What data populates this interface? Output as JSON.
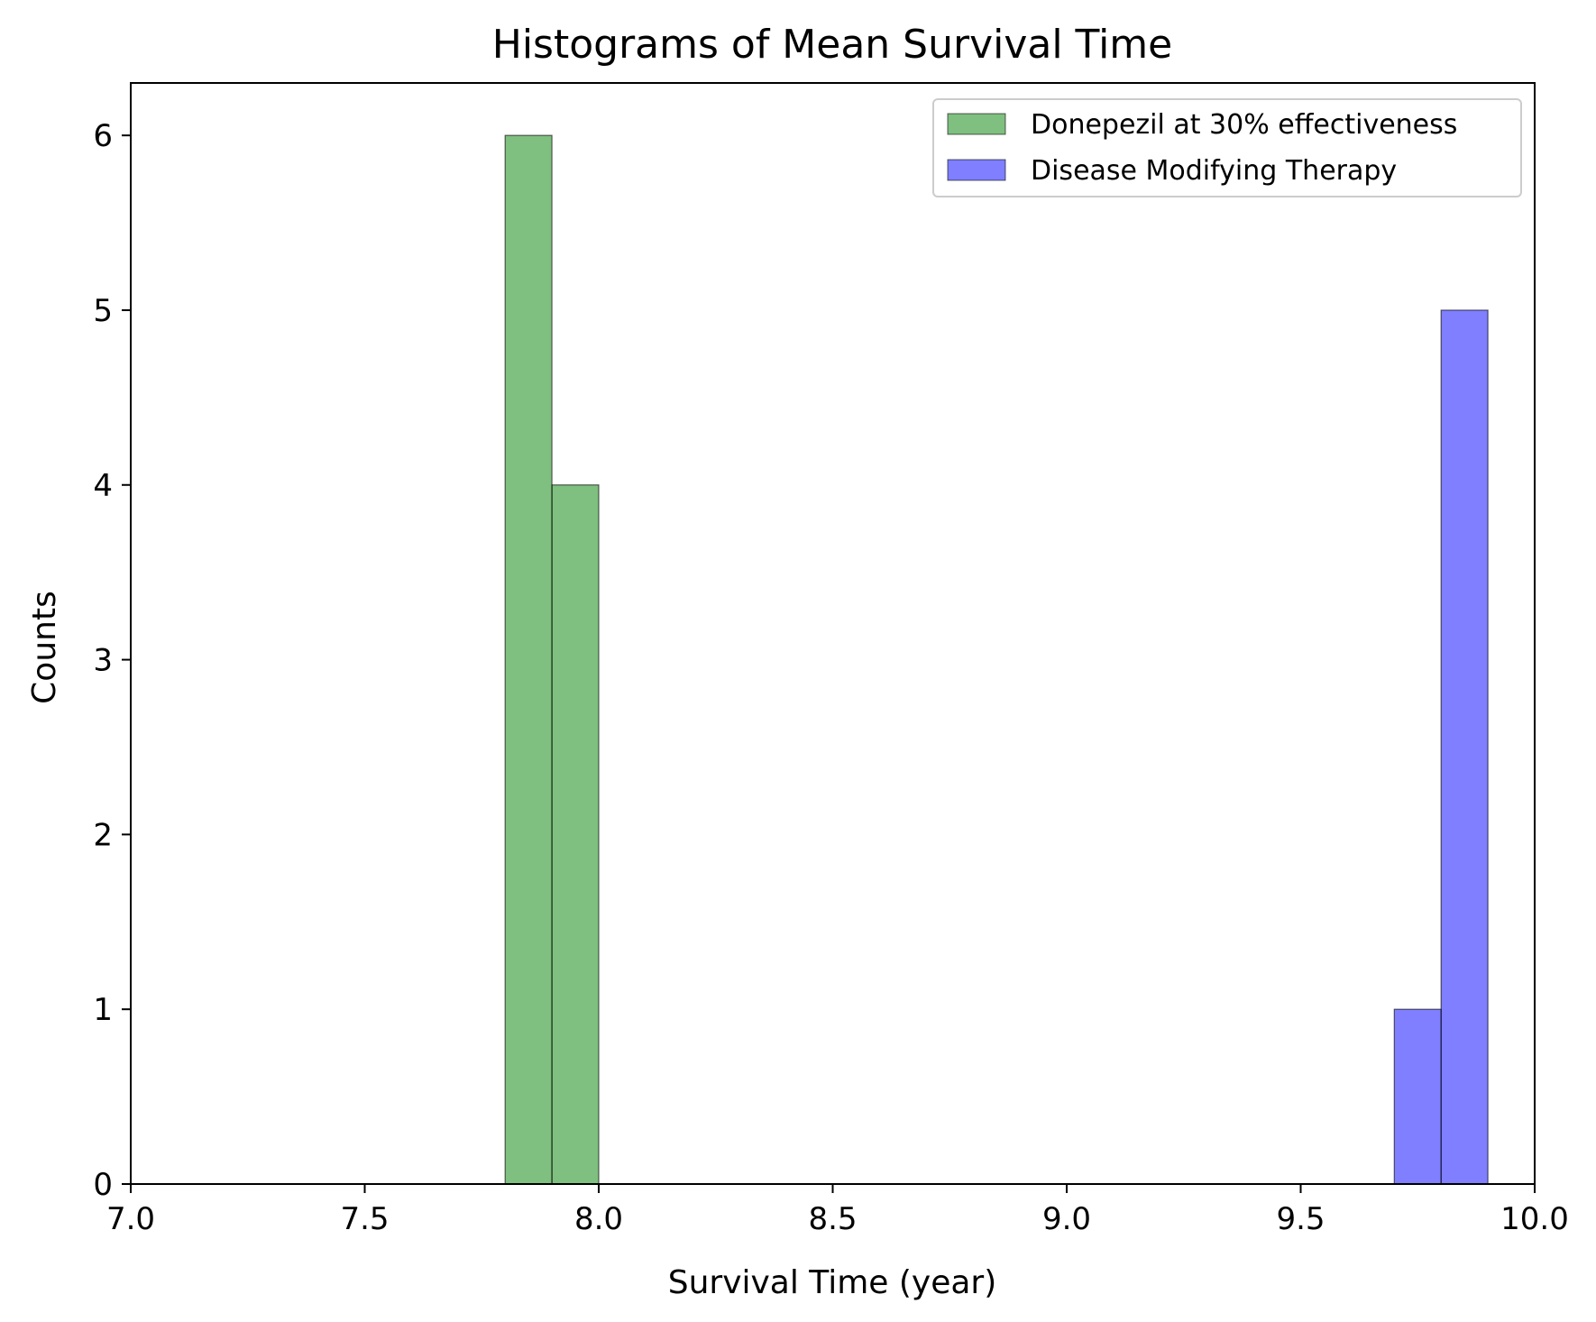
{
  "chart_data": {
    "type": "bar",
    "histogram": true,
    "title": "Histograms of Mean Survival Time",
    "xlabel": "Survival Time (year)",
    "ylabel": "Counts",
    "xlim": [
      7.0,
      10.0
    ],
    "ylim": [
      0,
      6.3
    ],
    "xticks": [
      "7.0",
      "7.5",
      "8.0",
      "8.5",
      "9.0",
      "9.5",
      "10.0"
    ],
    "xtick_values": [
      7.0,
      7.5,
      8.0,
      8.5,
      9.0,
      9.5,
      10.0
    ],
    "yticks": [
      "0",
      "1",
      "2",
      "3",
      "4",
      "5",
      "6"
    ],
    "ytick_values": [
      0,
      1,
      2,
      3,
      4,
      5,
      6
    ],
    "grid": false,
    "legend_position": "top-right",
    "series": [
      {
        "name": "Donepezil at 30% effectiveness",
        "color": "#008000",
        "bins": [
          {
            "x0": 7.8,
            "x1": 7.9,
            "count": 6
          },
          {
            "x0": 7.9,
            "x1": 8.0,
            "count": 4
          }
        ]
      },
      {
        "name": "Disease Modifying Therapy",
        "color": "#0000ff",
        "bins": [
          {
            "x0": 9.7,
            "x1": 9.8,
            "count": 1
          },
          {
            "x0": 9.8,
            "x1": 9.9,
            "count": 5
          }
        ]
      }
    ]
  }
}
